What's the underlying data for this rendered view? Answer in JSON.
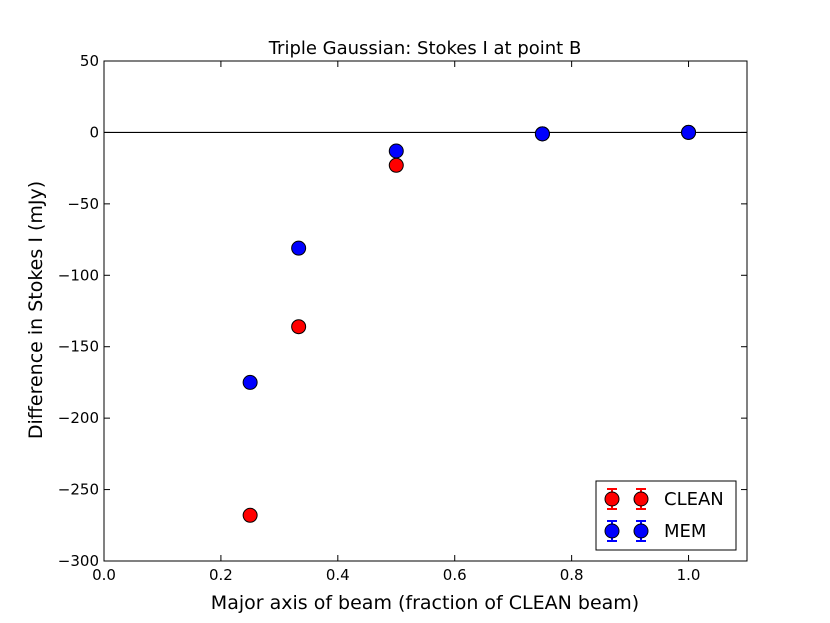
{
  "chart_data": {
    "type": "scatter",
    "title": "Triple Gaussian: Stokes I at point B",
    "xlabel": "Major axis of beam (fraction of CLEAN beam)",
    "ylabel": "Difference in Stokes I (mJy)",
    "xlim": [
      0.0,
      1.1
    ],
    "ylim": [
      -300,
      50
    ],
    "xticks": [
      0.0,
      0.2,
      0.4,
      0.6,
      0.8,
      1.0
    ],
    "xtick_labels": [
      "0.0",
      "0.2",
      "0.4",
      "0.6",
      "0.8",
      "1.0"
    ],
    "yticks": [
      -300,
      -250,
      -200,
      -150,
      -100,
      -50,
      0,
      50
    ],
    "ytick_labels": [
      "−300",
      "−250",
      "−200",
      "−150",
      "−100",
      "−50",
      "0",
      "50"
    ],
    "reference_line_y": 0,
    "grid": false,
    "legend_position": "lower-right",
    "series": [
      {
        "name": "CLEAN",
        "color": "#ff0000",
        "marker": "circle-with-errorbar",
        "x": [
          0.25,
          0.333,
          0.5,
          0.75,
          1.0
        ],
        "y": [
          -268,
          -136,
          -23,
          -1,
          0
        ]
      },
      {
        "name": "MEM",
        "color": "#0000ff",
        "marker": "circle-with-errorbar",
        "x": [
          0.25,
          0.333,
          0.5,
          0.75,
          1.0
        ],
        "y": [
          -175,
          -81,
          -13,
          -1,
          0
        ]
      }
    ]
  }
}
